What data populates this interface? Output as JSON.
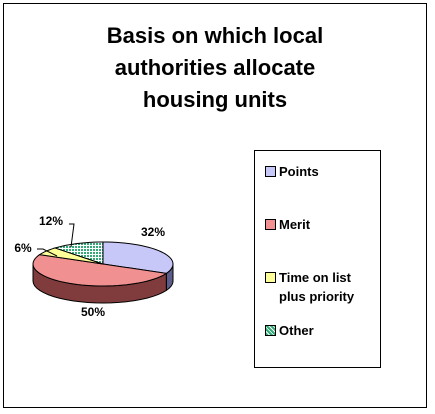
{
  "chart_data": {
    "type": "pie",
    "title_lines": [
      "Basis on which local",
      "authorities allocate",
      "housing units"
    ],
    "categories": [
      "Points",
      "Merit",
      "Time on list plus priority",
      "Other"
    ],
    "values": [
      32,
      50,
      6,
      12
    ],
    "data_labels": [
      "32%",
      "50%",
      "6%",
      "12%"
    ],
    "legend_labels": [
      "Points",
      "Merit",
      "Time on list\nplus priority",
      "Other"
    ],
    "colors": [
      "#c8c8f8",
      "#f09090",
      "#ffff99",
      "#33aa77"
    ],
    "side_colors": [
      "#5c5c8a",
      "#803c3c",
      "#9a9a40",
      "#1b6640"
    ],
    "three_d": true,
    "legend_position": "right"
  }
}
